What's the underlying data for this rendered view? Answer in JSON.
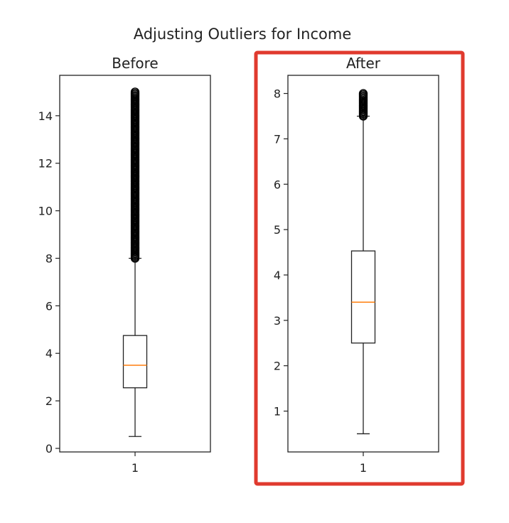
{
  "chart_data": {
    "type": "boxplot",
    "title": "Adjusting Outliers for Income",
    "highlight_color": "#e03a2e",
    "median_color": "#ff7f0e",
    "panels": [
      {
        "title": "Before",
        "category": "1",
        "ylim": [
          -0.15,
          15.7
        ],
        "yticks": [
          0,
          2,
          4,
          6,
          8,
          10,
          12,
          14
        ],
        "whisker_low": 0.5,
        "q1": 2.55,
        "median": 3.5,
        "q3": 4.75,
        "whisker_high": 8.0,
        "outlier_range": [
          8.0,
          15.0
        ],
        "highlighted": false
      },
      {
        "title": "After",
        "category": "1",
        "ylim": [
          0.1,
          8.4
        ],
        "yticks": [
          1,
          2,
          3,
          4,
          5,
          6,
          7,
          8
        ],
        "whisker_low": 0.5,
        "q1": 2.5,
        "median": 3.4,
        "q3": 4.53,
        "whisker_high": 7.5,
        "outlier_range": [
          7.5,
          8.0
        ],
        "highlighted": true
      }
    ]
  }
}
